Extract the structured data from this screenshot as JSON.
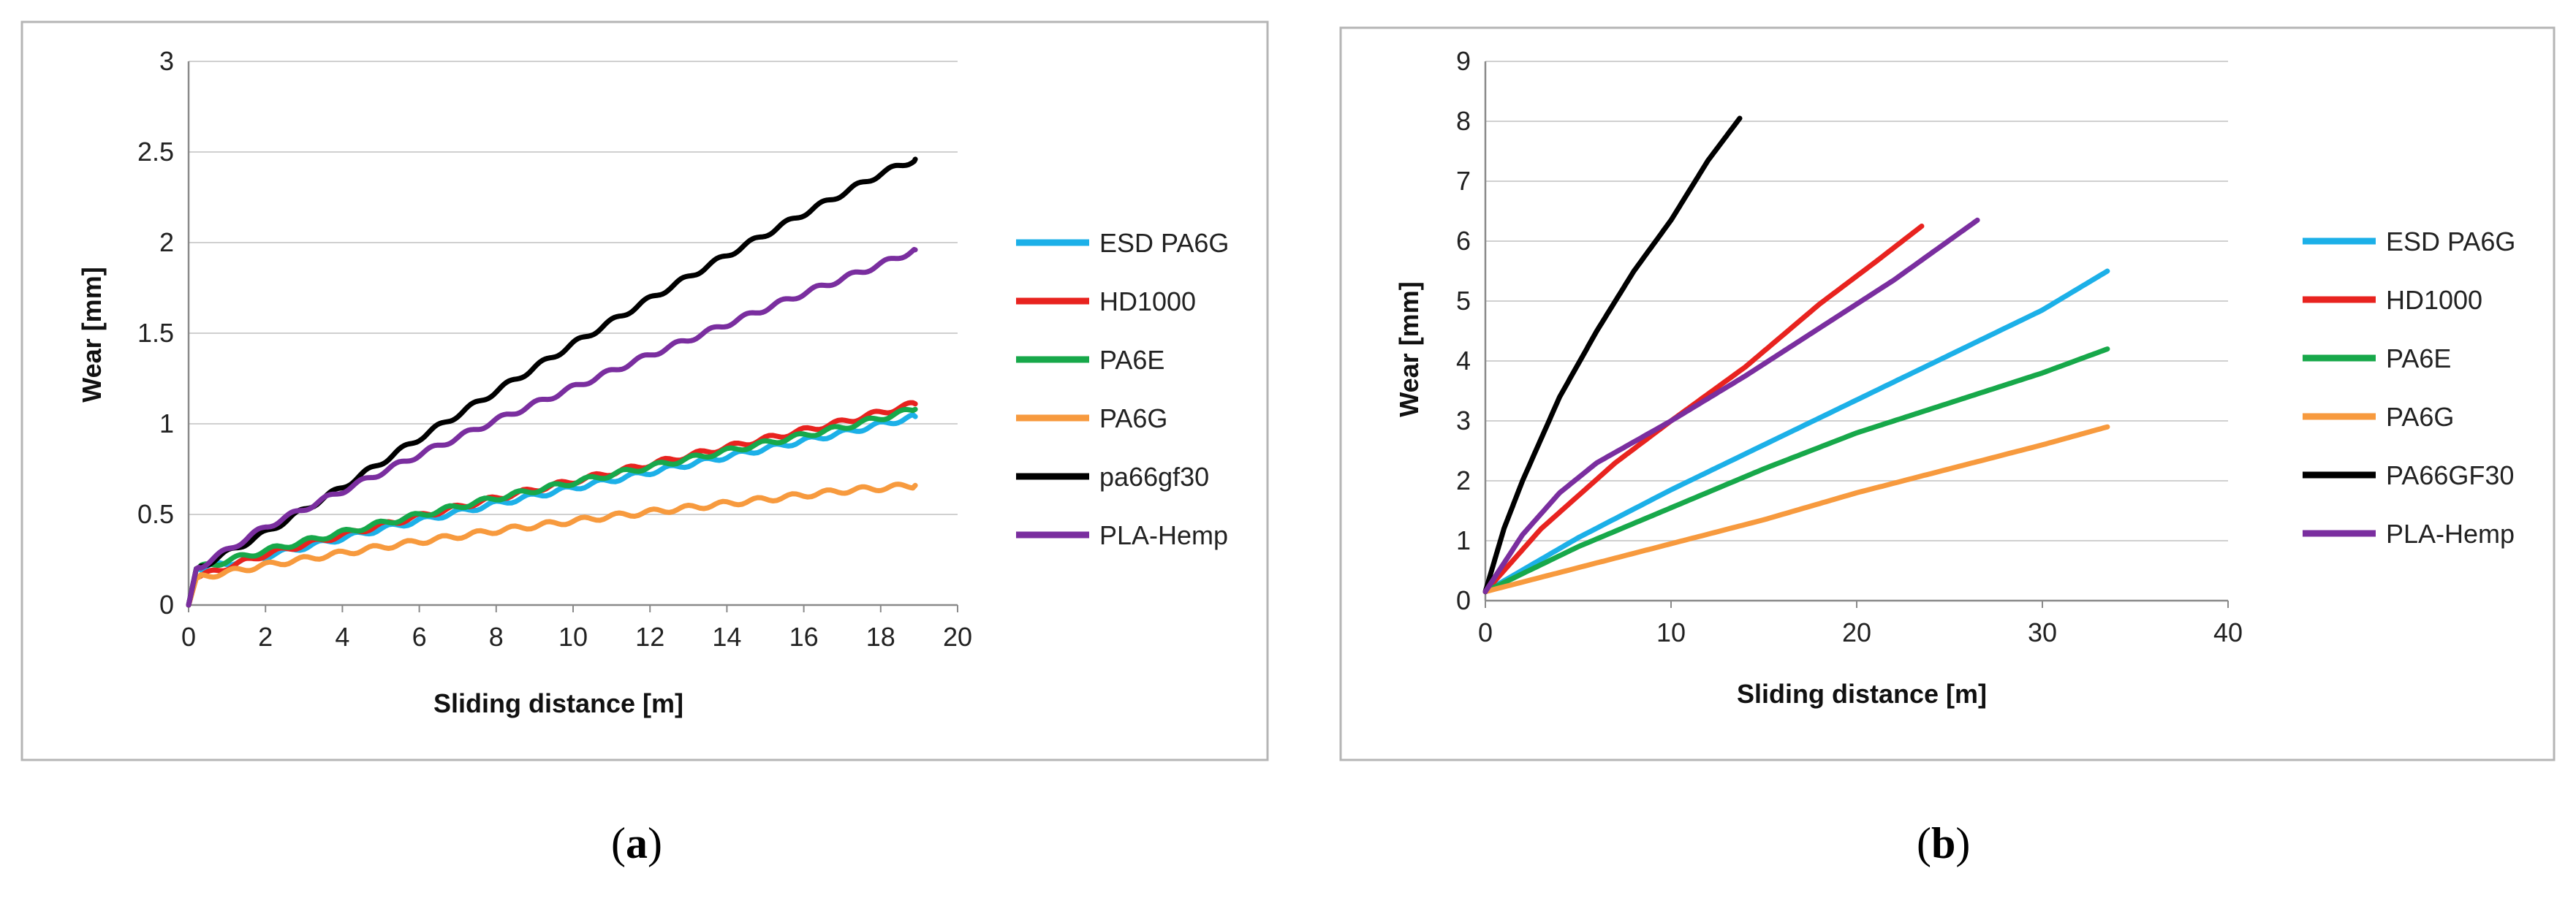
{
  "chart_data": [
    {
      "type": "line",
      "panel_label": "a",
      "xlabel": "Sliding distance [m]",
      "ylabel": "Wear [mm]",
      "xlim": [
        0,
        20
      ],
      "ylim": [
        0,
        3
      ],
      "xticks": [
        "0",
        "2",
        "4",
        "6",
        "8",
        "10",
        "12",
        "14",
        "16",
        "18",
        "20"
      ],
      "yticks": [
        "0",
        "0.5",
        "1",
        "1.5",
        "2",
        "2.5",
        "3"
      ],
      "grid": "horizontal",
      "legend_position": "right",
      "series": [
        {
          "name": "ESD PA6G",
          "color": "#1CB0E8",
          "x": [
            0,
            0.2,
            2,
            5,
            8,
            11,
            14,
            17,
            18.9
          ],
          "y": [
            0,
            0.2,
            0.27,
            0.42,
            0.56,
            0.69,
            0.82,
            0.95,
            1.04
          ]
        },
        {
          "name": "HD1000",
          "color": "#E8231F",
          "x": [
            0,
            0.2,
            2,
            5,
            8,
            11,
            14,
            17,
            18.9
          ],
          "y": [
            0,
            0.15,
            0.28,
            0.44,
            0.59,
            0.73,
            0.87,
            1.01,
            1.11
          ]
        },
        {
          "name": "PA6E",
          "color": "#17A84A",
          "x": [
            0,
            0.2,
            2,
            5,
            8,
            11,
            14,
            17,
            18.9
          ],
          "y": [
            0,
            0.2,
            0.3,
            0.45,
            0.59,
            0.72,
            0.85,
            0.98,
            1.08
          ]
        },
        {
          "name": "PA6G",
          "color": "#F79A3E",
          "x": [
            0,
            0.2,
            2,
            5,
            8,
            11,
            14,
            17,
            18.9
          ],
          "y": [
            0,
            0.15,
            0.22,
            0.32,
            0.41,
            0.49,
            0.56,
            0.63,
            0.66
          ]
        },
        {
          "name": "pa66gf30",
          "color": "#000000",
          "x": [
            0,
            0.2,
            2,
            4,
            6,
            8,
            10,
            12,
            14,
            16,
            18,
            18.9
          ],
          "y": [
            0,
            0.2,
            0.4,
            0.65,
            0.92,
            1.18,
            1.44,
            1.69,
            1.93,
            2.16,
            2.38,
            2.46
          ]
        },
        {
          "name": "PLA-Hemp",
          "color": "#7A2E9F",
          "x": [
            0,
            0.2,
            2,
            4,
            6,
            8,
            10,
            12,
            14,
            16,
            18,
            18.9
          ],
          "y": [
            0,
            0.2,
            0.43,
            0.63,
            0.83,
            1.02,
            1.2,
            1.38,
            1.55,
            1.72,
            1.88,
            1.96
          ]
        }
      ]
    },
    {
      "type": "line",
      "panel_label": "b",
      "xlabel": "Sliding distance [m]",
      "ylabel": "Wear [mm]",
      "xlim": [
        0,
        40
      ],
      "ylim": [
        0,
        9
      ],
      "xticks": [
        "0",
        "10",
        "20",
        "30",
        "40"
      ],
      "yticks": [
        "0",
        "1",
        "2",
        "3",
        "4",
        "5",
        "6",
        "7",
        "8",
        "9"
      ],
      "grid": "horizontal",
      "legend_position": "right",
      "series": [
        {
          "name": "ESD PA6G",
          "color": "#1CB0E8",
          "x": [
            0,
            5,
            10,
            15,
            20,
            25,
            30,
            33.5
          ],
          "y": [
            0.15,
            1.05,
            1.85,
            2.6,
            3.35,
            4.1,
            4.85,
            5.5
          ]
        },
        {
          "name": "HD1000",
          "color": "#E8231F",
          "x": [
            0,
            3,
            7,
            10,
            14,
            18,
            21,
            23.5
          ],
          "y": [
            0.15,
            1.2,
            2.3,
            3.0,
            3.9,
            4.95,
            5.65,
            6.25
          ]
        },
        {
          "name": "PA6E",
          "color": "#17A84A",
          "x": [
            0,
            5,
            10,
            15,
            20,
            25,
            30,
            33.5
          ],
          "y": [
            0.15,
            0.9,
            1.55,
            2.2,
            2.8,
            3.3,
            3.8,
            4.2
          ]
        },
        {
          "name": "PA6G",
          "color": "#F79A3E",
          "x": [
            0,
            5,
            10,
            15,
            20,
            25,
            30,
            33.5
          ],
          "y": [
            0.15,
            0.55,
            0.95,
            1.35,
            1.8,
            2.2,
            2.6,
            2.9
          ]
        },
        {
          "name": "PA66GF30",
          "color": "#000000",
          "x": [
            0,
            1,
            2,
            4,
            6,
            8,
            10,
            12,
            13.7
          ],
          "y": [
            0.15,
            1.2,
            2.0,
            3.4,
            4.5,
            5.5,
            6.35,
            7.35,
            8.05
          ]
        },
        {
          "name": "PLA-Hemp",
          "color": "#7A2E9F",
          "x": [
            0,
            2,
            4,
            6,
            10,
            14,
            18,
            22,
            26.5
          ],
          "y": [
            0.15,
            1.1,
            1.8,
            2.3,
            3.0,
            3.75,
            4.55,
            5.35,
            6.35
          ]
        }
      ]
    }
  ]
}
